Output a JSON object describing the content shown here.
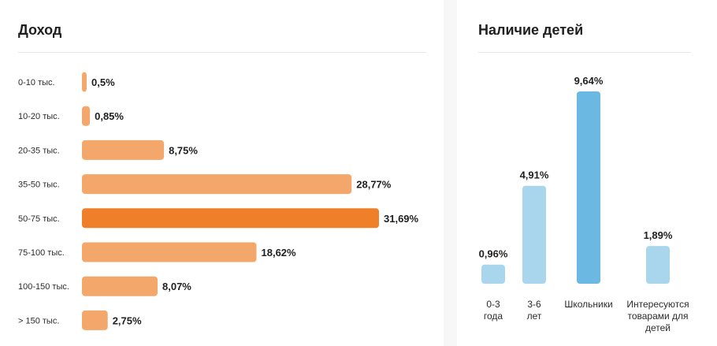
{
  "income": {
    "title": "Доход",
    "bar_color": "#f4a76b",
    "highlight_color": "#f07f2a"
  },
  "children": {
    "title": "Наличие детей",
    "bar_color": "#a9d5ed",
    "highlight_color": "#6bb8e3"
  },
  "chart_data": [
    {
      "type": "bar",
      "orientation": "horizontal",
      "title": "Доход",
      "categories": [
        "0-10 тыс.",
        "10-20 тыс.",
        "20-35 тыс.",
        "35-50 тыс.",
        "50-75 тыс.",
        "75-100 тыс.",
        "100-150 тыс.",
        "> 150 тыс."
      ],
      "values": [
        0.5,
        0.85,
        8.75,
        28.77,
        31.69,
        18.62,
        8.07,
        2.75
      ],
      "value_labels": [
        "0,5%",
        "0,85%",
        "8,75%",
        "28,77%",
        "31,69%",
        "18,62%",
        "8,07%",
        "2,75%"
      ],
      "unit": "%",
      "highlight_index": 4,
      "xlim": [
        0,
        31.69
      ],
      "grid": false
    },
    {
      "type": "bar",
      "orientation": "vertical",
      "title": "Наличие детей",
      "categories": [
        "0-3 года",
        "3-6 лет",
        "Школьники",
        "Интересуются товарами для детей"
      ],
      "values": [
        0.96,
        4.91,
        9.64,
        1.89
      ],
      "value_labels": [
        "0,96%",
        "4,91%",
        "9,64%",
        "1,89%"
      ],
      "unit": "%",
      "highlight_index": 2,
      "ylim": [
        0,
        9.64
      ],
      "grid": false
    }
  ]
}
